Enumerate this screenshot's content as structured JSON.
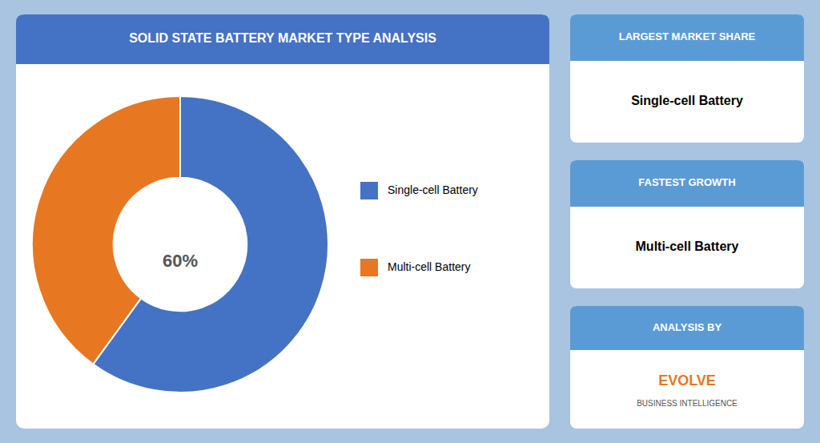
{
  "chart_data": {
    "type": "pie",
    "title": "SOLID STATE BATTERY MARKET TYPE ANALYSIS",
    "categories": [
      "Single-cell Battery",
      "Multi-cell Battery"
    ],
    "values": [
      60,
      40
    ],
    "colors": [
      "#4472c4",
      "#e87722"
    ],
    "legend": "right",
    "annotations": [
      {
        "text": "60%"
      },
      {
        "header": "LARGEST MARKET SHARE",
        "text": "Single-cell Battery"
      },
      {
        "header": "FASTEST GROWTH",
        "text": "Multi-cell Battery"
      },
      {
        "header": "ANALYSIS BY",
        "text": "EVOLVE",
        "subtext": "BUSINESS INTELLIGENCE"
      }
    ]
  }
}
